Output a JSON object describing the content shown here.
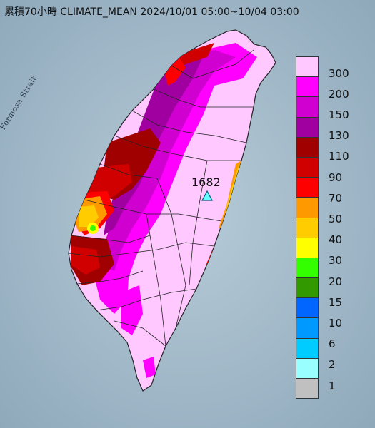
{
  "title": "累積70小時 CLIMATE_MEAN 2024/10/01 05:00~10/04 03:00",
  "strait_label": "Formosa Strait",
  "peak_label": "1682",
  "legend": [
    {
      "label": "300",
      "color": "#ffc8ff"
    },
    {
      "label": "200",
      "color": "#ff00ff"
    },
    {
      "label": "150",
      "color": "#d000d0"
    },
    {
      "label": "130",
      "color": "#a000a0"
    },
    {
      "label": "110",
      "color": "#a00000"
    },
    {
      "label": "90",
      "color": "#d00000"
    },
    {
      "label": "70",
      "color": "#ff0000"
    },
    {
      "label": "50",
      "color": "#ff9900"
    },
    {
      "label": "40",
      "color": "#ffcc00"
    },
    {
      "label": "30",
      "color": "#ffff00"
    },
    {
      "label": "20",
      "color": "#33ff00"
    },
    {
      "label": "15",
      "color": "#339900"
    },
    {
      "label": "10",
      "color": "#0066ff"
    },
    {
      "label": "6",
      "color": "#0099ff"
    },
    {
      "label": "2",
      "color": "#00ccff"
    },
    {
      "label": "1",
      "color": "#99ffff"
    },
    {
      "label": "",
      "color": "#c0c0c0"
    }
  ],
  "colors": {
    "sea": "#9fb8c8",
    "land_base": "#ffc8ff"
  }
}
